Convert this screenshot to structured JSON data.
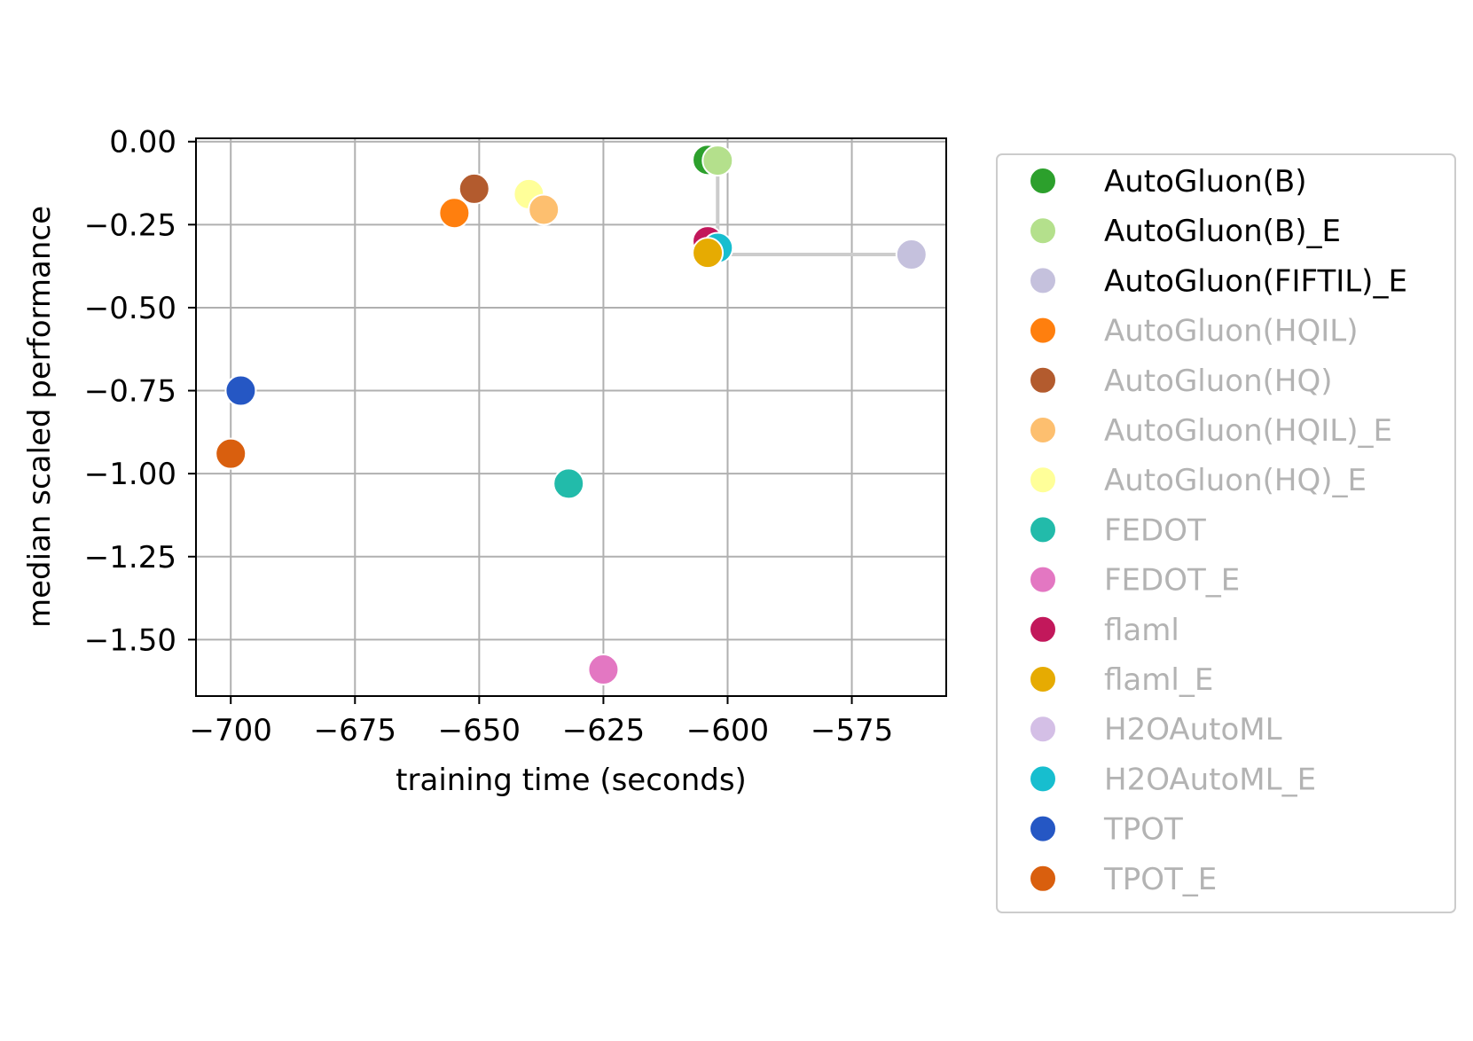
{
  "chart_data": {
    "type": "scatter",
    "xlabel": "training time (seconds)",
    "ylabel": "median scaled performance",
    "xlim": [
      -707,
      -556
    ],
    "ylim": [
      -1.67,
      0.01
    ],
    "x_ticks": [
      -700,
      -675,
      -650,
      -625,
      -600,
      -575
    ],
    "x_tick_labels": [
      "−700",
      "−675",
      "−650",
      "−625",
      "−600",
      "−575"
    ],
    "y_ticks": [
      0.0,
      -0.25,
      -0.5,
      -0.75,
      -1.0,
      -1.25,
      -1.5
    ],
    "y_tick_labels": [
      "0.00",
      "−0.25",
      "−0.50",
      "−0.75",
      "−1.00",
      "−1.25",
      "−1.50"
    ],
    "grid": true,
    "legend_position": "right, outside plot",
    "pareto_front": [
      {
        "x": -602,
        "y": -0.055
      },
      {
        "x": -602,
        "y": -0.34
      },
      {
        "x": -563,
        "y": -0.34
      }
    ],
    "series": [
      {
        "name": "AutoGluon(B)",
        "color": "#2ca02c",
        "highlighted": true,
        "points": [
          {
            "x": -604,
            "y": -0.055
          }
        ]
      },
      {
        "name": "AutoGluon(B)_E",
        "color": "#b4e08c",
        "highlighted": true,
        "points": [
          {
            "x": -602,
            "y": -0.057
          }
        ]
      },
      {
        "name": "AutoGluon(FIFTIL)_E",
        "color": "#c5c1dd",
        "highlighted": true,
        "points": [
          {
            "x": -563,
            "y": -0.34
          }
        ]
      },
      {
        "name": "AutoGluon(HQIL)",
        "color": "#ff7f0e",
        "highlighted": false,
        "points": [
          {
            "x": -655,
            "y": -0.215
          }
        ]
      },
      {
        "name": "AutoGluon(HQ)",
        "color": "#b35b2e",
        "highlighted": false,
        "points": [
          {
            "x": -651,
            "y": -0.142
          }
        ]
      },
      {
        "name": "AutoGluon(HQIL)_E",
        "color": "#fdbf6f",
        "highlighted": false,
        "points": [
          {
            "x": -637,
            "y": -0.205
          }
        ]
      },
      {
        "name": "AutoGluon(HQ)_E",
        "color": "#ffff99",
        "highlighted": false,
        "points": [
          {
            "x": -640,
            "y": -0.158
          }
        ]
      },
      {
        "name": "FEDOT",
        "color": "#22bbaa",
        "highlighted": false,
        "points": [
          {
            "x": -632,
            "y": -1.03
          }
        ]
      },
      {
        "name": "FEDOT_E",
        "color": "#e377c2",
        "highlighted": false,
        "points": [
          {
            "x": -625,
            "y": -1.59
          }
        ]
      },
      {
        "name": "flaml",
        "color": "#c2185b",
        "highlighted": false,
        "points": [
          {
            "x": -604,
            "y": -0.3
          }
        ]
      },
      {
        "name": "flaml_E",
        "color": "#e6ab02",
        "highlighted": false,
        "points": [
          {
            "x": -604,
            "y": -0.335
          }
        ]
      },
      {
        "name": "H2OAutoML",
        "color": "#d4bfe6",
        "highlighted": false,
        "points": []
      },
      {
        "name": "H2OAutoML_E",
        "color": "#17becf",
        "highlighted": false,
        "points": [
          {
            "x": -602,
            "y": -0.32
          }
        ]
      },
      {
        "name": "TPOT",
        "color": "#2557c4",
        "highlighted": false,
        "points": [
          {
            "x": -698,
            "y": -0.75
          }
        ]
      },
      {
        "name": "TPOT_E",
        "color": "#d95f0e",
        "highlighted": false,
        "points": [
          {
            "x": -700,
            "y": -0.94
          }
        ]
      }
    ],
    "draw_order": [
      "AutoGluon(B)",
      "AutoGluon(HQIL)",
      "AutoGluon(HQ)",
      "AutoGluon(HQ)_E",
      "AutoGluon(HQIL)_E",
      "FEDOT",
      "FEDOT_E",
      "TPOT",
      "TPOT_E",
      "AutoGluon(FIFTIL)_E",
      "flaml",
      "H2OAutoML_E",
      "flaml_E",
      "AutoGluon(B)_E"
    ],
    "colors": {
      "pareto_line": "#cccccc",
      "grid": "#b0b0b0",
      "legend_text_active": "#000000",
      "legend_text_inactive": "#b3b3b3",
      "legend_border": "#cccccc"
    }
  }
}
